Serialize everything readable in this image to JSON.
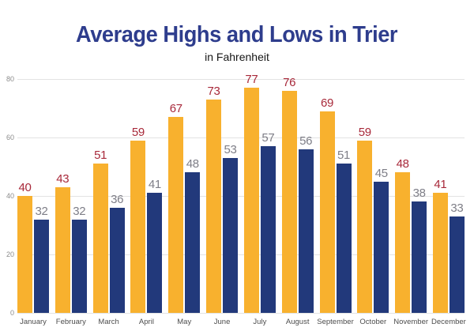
{
  "chart_data": {
    "type": "bar",
    "title": "Average Highs and Lows in Trier",
    "subtitle": "in Fahrenheit",
    "categories": [
      "January",
      "February",
      "March",
      "April",
      "May",
      "June",
      "July",
      "August",
      "September",
      "October",
      "November",
      "December"
    ],
    "series": [
      {
        "name": "Average High",
        "bar_color": "#f8b12e",
        "label_color": "#a8293a",
        "values": [
          40,
          43,
          51,
          59,
          67,
          73,
          77,
          76,
          69,
          59,
          48,
          41
        ]
      },
      {
        "name": "Average Low",
        "bar_color": "#22397b",
        "label_color": "#7e7e87",
        "values": [
          32,
          32,
          36,
          41,
          48,
          53,
          57,
          56,
          51,
          45,
          38,
          33
        ]
      }
    ],
    "xlabel": "",
    "ylabel": "",
    "ylim": [
      0,
      80
    ],
    "yticks": [
      0,
      20,
      40,
      60,
      80
    ],
    "grid": "horizontal",
    "legend": "none",
    "colors": {
      "title": "#2e3d8d",
      "subtitle": "#161616",
      "gridline": "#e3e3e3",
      "axis_tick_text": "#8c8c8c",
      "month_text": "#4d4d4d",
      "background": "#ffffff"
    }
  }
}
